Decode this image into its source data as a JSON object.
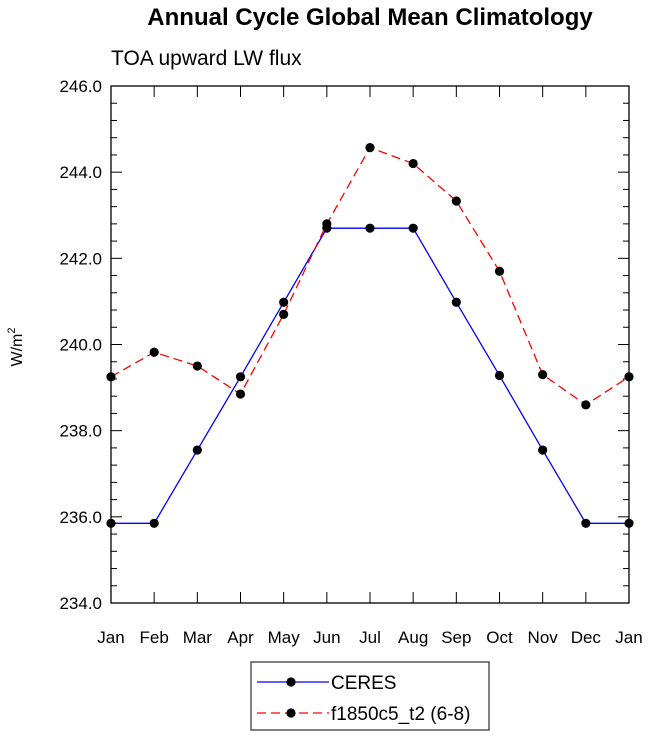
{
  "chart_data": {
    "type": "line",
    "title": "Annual Cycle Global Mean Climatology",
    "subtitle": "TOA upward LW flux",
    "xlabel": "",
    "ylabel": "W/m",
    "ylabel_superscript": "2",
    "categories": [
      "Jan",
      "Feb",
      "Mar",
      "Apr",
      "May",
      "Jun",
      "Jul",
      "Aug",
      "Sep",
      "Oct",
      "Nov",
      "Dec",
      "Jan"
    ],
    "ylim": [
      234.0,
      246.0
    ],
    "yticks": [
      "234.0",
      "236.0",
      "238.0",
      "240.0",
      "242.0",
      "244.0",
      "246.0"
    ],
    "series": [
      {
        "name": "CERES",
        "color": "#0000ff",
        "dash": "solid",
        "values": [
          235.85,
          235.85,
          237.55,
          239.25,
          240.98,
          242.7,
          242.7,
          242.7,
          240.98,
          239.28,
          237.55,
          235.85,
          235.85
        ]
      },
      {
        "name": "f1850c5_t2 (6-8)",
        "color": "#ff0000",
        "dash": "dashed",
        "values": [
          239.25,
          239.82,
          239.5,
          238.85,
          240.7,
          242.8,
          244.57,
          244.2,
          243.33,
          241.7,
          239.3,
          238.6,
          239.25
        ]
      }
    ],
    "legend_position": "bottom-center"
  }
}
